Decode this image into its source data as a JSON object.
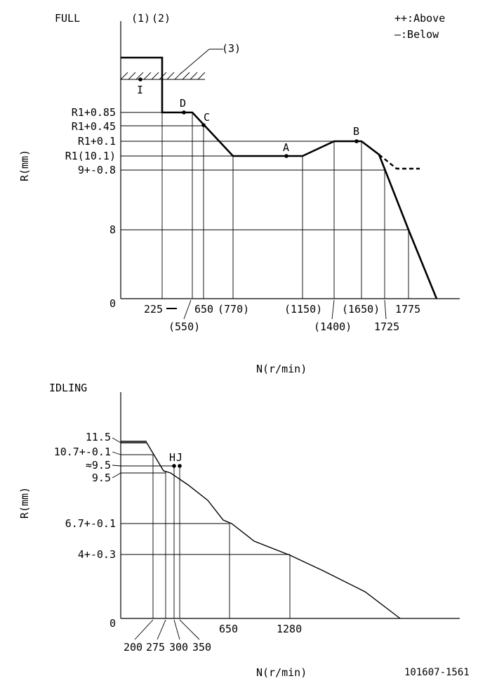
{
  "legend": {
    "above": "++:Above",
    "below": "—:Below"
  },
  "full": {
    "title": "FULL",
    "callouts": [
      "(1)",
      "(2)",
      "(3)"
    ],
    "points": [
      "I",
      "D",
      "C",
      "B",
      "A"
    ],
    "y_ticks": [
      "R1+0.85",
      "R1+0.45",
      "R1+0.1",
      "R1(10.1)",
      "9+-0.8",
      "8",
      "0"
    ],
    "x_ticks": [
      "225",
      "650",
      "(770)",
      "(1150)",
      "(1650)",
      "1775",
      "(550)",
      "(1400)",
      "1725"
    ],
    "ylabel": "R(mm)",
    "xlabel": "N(r/min)"
  },
  "idling": {
    "title": "IDLING",
    "points": [
      "H",
      "J"
    ],
    "y_ticks": [
      "11.5",
      "10.7+-0.1",
      "≈9.5",
      "9.5",
      "6.7+-0.1",
      "4+-0.3",
      "0"
    ],
    "x_ticks": [
      "650",
      "1280",
      "200",
      "275",
      "300",
      "350"
    ],
    "ylabel": "R(mm)",
    "xlabel": "N(r/min)"
  },
  "drawing_number": "101607-1561"
}
